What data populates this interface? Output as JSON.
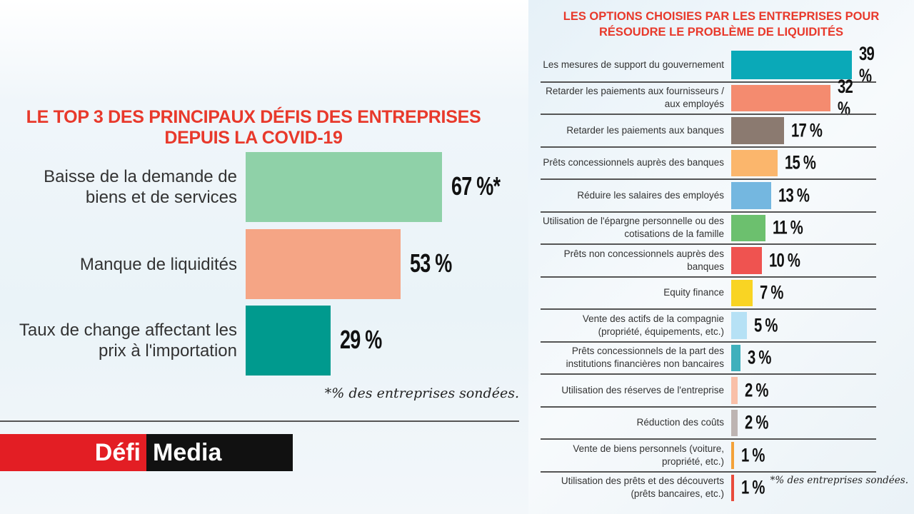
{
  "chart_data": [
    {
      "type": "bar",
      "orientation": "horizontal",
      "title": "LE TOP 3 DES PRINCIPAUX DÉFIS DES ENTREPRISES DEPUIS LA COVID-19",
      "categories": [
        "Baisse de la demande de biens et de services",
        "Manque de liquidités",
        "Taux de change affectant les prix à l'importation"
      ],
      "values": [
        67,
        53,
        29
      ],
      "value_labels": [
        "67 %*",
        "53 %",
        "29 %"
      ],
      "colors": [
        "#8fd1a8",
        "#f5a585",
        "#009a8e"
      ],
      "footnote": "*% des entreprises sondées.",
      "unit": "%",
      "xlim": [
        0,
        100
      ]
    },
    {
      "type": "bar",
      "orientation": "horizontal",
      "title": "LES OPTIONS CHOISIES PAR LES ENTREPRISES POUR RÉSOUDRE LE PROBLÈME DE LIQUIDITÉS",
      "categories": [
        "Les mesures de support du gouvernement",
        "Retarder les paiements aux fournisseurs / aux employés",
        "Retarder les paiements aux banques",
        "Prêts concessionnels auprès des banques",
        "Réduire les salaires des employés",
        "Utilisation de l'épargne personnelle ou des cotisations de la famille",
        "Prêts non concessionnels auprès des banques",
        "Equity finance",
        "Vente des actifs de la compagnie (propriété, équipements, etc.)",
        "Prêts concessionnels de la part des institutions financières non bancaires",
        "Utilisation des réserves de l'entreprise",
        "Réduction des coûts",
        "Vente de biens personnels (voiture, propriété, etc.)",
        "Utilisation des prêts et des découverts (prêts bancaires, etc.)"
      ],
      "values": [
        39,
        32,
        17,
        15,
        13,
        11,
        10,
        7,
        5,
        3,
        2,
        2,
        1,
        1
      ],
      "value_labels": [
        "39 %",
        "32 %",
        "17 %",
        "15 %",
        "13 %",
        "11 %",
        "10 %",
        "7 %",
        "5 %",
        "3 %",
        "2 %",
        "2 %",
        "1 %",
        "1 %"
      ],
      "colors": [
        "#0aa9b8",
        "#f48b6f",
        "#8b7a70",
        "#fbb66c",
        "#74b7e0",
        "#6cc06e",
        "#ef5350",
        "#f9d423",
        "#b6e1f5",
        "#3fb0bc",
        "#f9c0a8",
        "#bdb4b2",
        "#f4a23a",
        "#e94b3c"
      ],
      "footnote": "*% des entreprises sondées.",
      "unit": "%",
      "xlim": [
        0,
        100
      ]
    }
  ],
  "logo": {
    "part1": "Défi",
    "part2": "Media"
  }
}
